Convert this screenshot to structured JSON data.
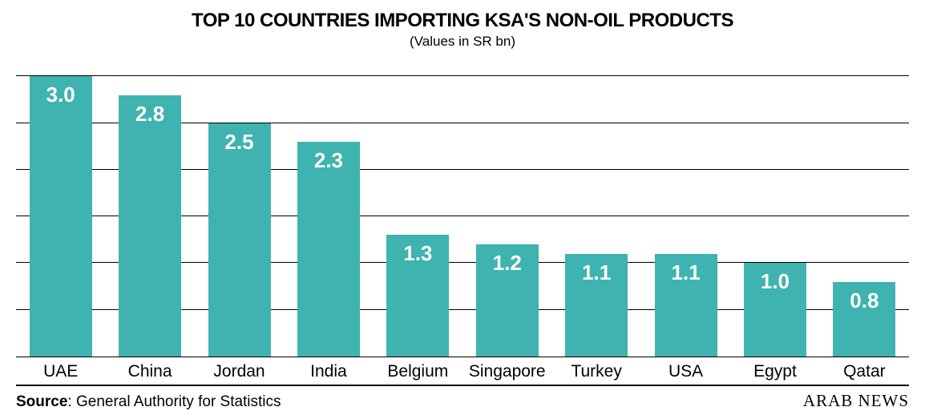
{
  "title": "TOP 10 COUNTRIES IMPORTING KSA'S NON-OIL PRODUCTS",
  "subtitle": "(Values in SR bn)",
  "source_label": "Source",
  "source_text": ": General Authority for Statistics",
  "brand": "ARAB NEWS",
  "chart": {
    "type": "bar",
    "categories": [
      "UAE",
      "China",
      "Jordan",
      "India",
      "Belgium",
      "Singapore",
      "Turkey",
      "USA",
      "Egypt",
      "Qatar"
    ],
    "values": [
      3.0,
      2.8,
      2.5,
      2.3,
      1.3,
      1.2,
      1.1,
      1.1,
      1.0,
      0.8
    ],
    "value_labels": [
      "3.0",
      "2.8",
      "2.5",
      "2.3",
      "1.3",
      "1.2",
      "1.1",
      "1.1",
      "1.0",
      "0.8"
    ],
    "bar_color": "#3fb3b0",
    "ylim": [
      0,
      3.2
    ],
    "gridlines_at": [
      0.5,
      1.0,
      1.5,
      2.0,
      2.5,
      3.0
    ],
    "gridline_color": "#000000",
    "background_color": "#ffffff",
    "bar_width_pct": 70,
    "title_fontsize": 24,
    "subtitle_fontsize": 17,
    "value_fontsize": 26,
    "xlabel_fontsize": 21,
    "footer_fontsize": 19,
    "brand_fontsize": 21,
    "text_color": "#000000",
    "value_text_color": "#ffffff"
  }
}
